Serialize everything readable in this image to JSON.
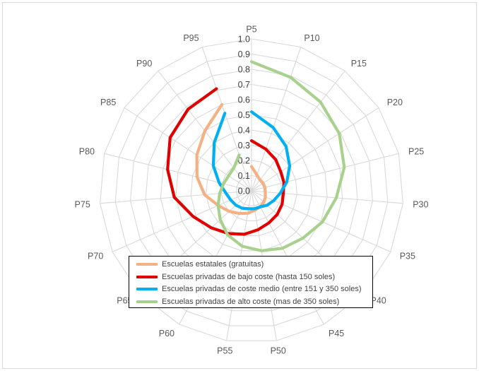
{
  "chart_data": {
    "type": "radar",
    "title": "",
    "categories": [
      "P5",
      "P10",
      "P15",
      "P20",
      "P25",
      "P30",
      "P35",
      "P40",
      "P45",
      "P50",
      "P55",
      "P60",
      "P65",
      "P70",
      "P75",
      "P80",
      "P85",
      "P90",
      "P95"
    ],
    "ticks": [
      "0.0",
      "0.1",
      "0.2",
      "0.3",
      "0.4",
      "0.5",
      "0.6",
      "0.7",
      "0.8",
      "0.9",
      "1.0"
    ],
    "rlim": [
      0,
      1
    ],
    "grid": true,
    "legend_position": "bottom-center",
    "series": [
      {
        "name": "Escuelas estatales (gratuitas)",
        "color": "#f4b183",
        "values": [
          0.16,
          0.11,
          0.09,
          0.09,
          0.09,
          0.09,
          0.1,
          0.11,
          0.12,
          0.13,
          0.15,
          0.17,
          0.2,
          0.24,
          0.31,
          0.37,
          0.43,
          0.5,
          0.6
        ]
      },
      {
        "name": "Escuelas privadas de bajo coste (hasta 150 soles)",
        "color": "#e00000",
        "values": [
          0.33,
          0.29,
          0.26,
          0.23,
          0.22,
          0.21,
          0.22,
          0.23,
          0.24,
          0.26,
          0.29,
          0.32,
          0.36,
          0.42,
          0.51,
          0.57,
          0.64,
          0.68,
          0.71
        ]
      },
      {
        "name": "Escuelas privadas de coste medio (entre 151 y 350 soles)",
        "color": "#00b0f0",
        "values": [
          0.52,
          0.44,
          0.37,
          0.3,
          0.24,
          0.19,
          0.16,
          0.14,
          0.12,
          0.12,
          0.12,
          0.13,
          0.14,
          0.15,
          0.17,
          0.22,
          0.3,
          0.4,
          0.54
        ]
      },
      {
        "name": "Escuelas privadas de alto coste (mas de 350 soles)",
        "color": "#a9d18e",
        "values": [
          0.85,
          0.79,
          0.74,
          0.69,
          0.63,
          0.56,
          0.51,
          0.46,
          0.43,
          0.4,
          0.37,
          0.33,
          0.28,
          0.24,
          0.21,
          0.19,
          0.18,
          0.19,
          0.25
        ]
      }
    ]
  }
}
